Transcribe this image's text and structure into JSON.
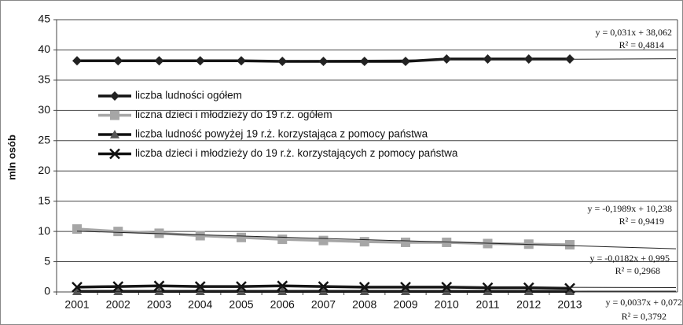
{
  "chart_data": {
    "type": "line",
    "y_label": "mln osób",
    "categories": [
      "2001",
      "2002",
      "2003",
      "2004",
      "2005",
      "2006",
      "2007",
      "2008",
      "2009",
      "2010",
      "2011",
      "2012",
      "2013"
    ],
    "ylim": [
      0,
      45
    ],
    "yticks": [
      0,
      5,
      10,
      15,
      20,
      25,
      30,
      35,
      40,
      45
    ],
    "grid": true,
    "legend": "upper left",
    "series": [
      {
        "name": "liczba ludności ogółem",
        "color": "#111111",
        "marker": "diamond",
        "marker_color": "#222222",
        "values": [
          38.2,
          38.2,
          38.2,
          38.2,
          38.2,
          38.1,
          38.1,
          38.1,
          38.1,
          38.5,
          38.5,
          38.5,
          38.5
        ]
      },
      {
        "name": "liczna dzieci i młodzieży do 19 r.ż. ogółem",
        "color": "#a6a6a6",
        "marker": "square",
        "marker_color": "#a6a6a6",
        "values": [
          10.4,
          10.0,
          9.7,
          9.3,
          9.0,
          8.7,
          8.5,
          8.3,
          8.2,
          8.2,
          8.0,
          7.9,
          7.8
        ]
      },
      {
        "name": "liczba ludność powyżej 19 r.ż. korzystająca z pomocy  państwa",
        "color": "#111111",
        "marker": "triangle",
        "marker_color": "#555555",
        "values": [
          0.1,
          0.1,
          0.1,
          0.1,
          0.1,
          0.1,
          0.1,
          0.1,
          0.1,
          0.1,
          0.1,
          0.1,
          0.1
        ]
      },
      {
        "name": "liczba dzieci i młodzieży do 19 r.ż. korzystających  z pomocy państwa",
        "color": "#111111",
        "marker": "x",
        "marker_color": "#111111",
        "values": [
          0.8,
          0.9,
          1.0,
          0.9,
          0.9,
          1.0,
          0.9,
          0.8,
          0.8,
          0.8,
          0.7,
          0.7,
          0.6
        ]
      }
    ],
    "trendlines": [
      {
        "slope": 0.031,
        "intercept": 38.062,
        "equation": "y = 0,031x + 38,062",
        "r2": "R² = 0,4814"
      },
      {
        "slope": -0.1989,
        "intercept": 10.238,
        "equation": "y = -0,1989x + 10,238",
        "r2": "R² = 0,9419"
      },
      {
        "slope": -0.0182,
        "intercept": 0.995,
        "equation": "y = -0,0182x + 0,995",
        "r2": "R² = 0,2968"
      },
      {
        "slope": 0.0037,
        "intercept": 0.072,
        "equation": "y = 0,0037x + 0,072",
        "r2": "R² = 0,3792"
      }
    ]
  }
}
